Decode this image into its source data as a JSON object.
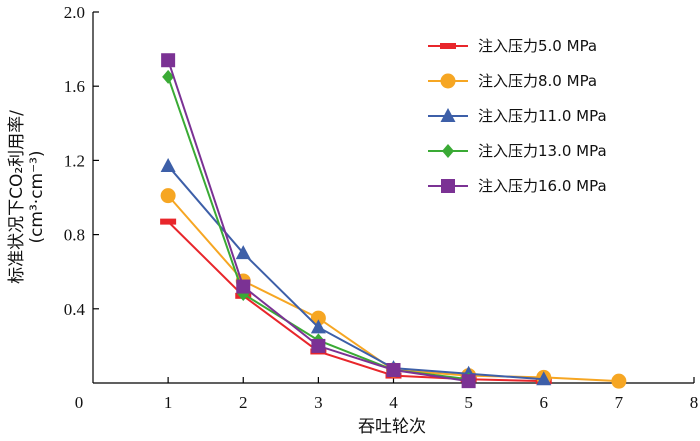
{
  "chart_data": {
    "type": "line",
    "xlabel": "吞吐轮次",
    "ylabel_line1": "标准状况下CO₂利用率/",
    "ylabel_line2": "(cm³·cm⁻³)",
    "xlim": [
      0,
      8
    ],
    "ylim": [
      0,
      2.0
    ],
    "xticks": [
      "0",
      "1",
      "2",
      "3",
      "4",
      "5",
      "6",
      "7",
      "8"
    ],
    "yticks": [
      "0.4",
      "0.8",
      "1.2",
      "1.6",
      "2.0"
    ],
    "grid": false,
    "legend_position": "top-right",
    "series": [
      {
        "name": "注入压力5.0 MPa",
        "color": "#e8262b",
        "marker": "dash",
        "x": [
          1,
          2,
          3,
          4,
          5,
          6
        ],
        "y": [
          0.87,
          0.47,
          0.17,
          0.04,
          0.02,
          0.01
        ]
      },
      {
        "name": "注入压力8.0 MPa",
        "color": "#f6a623",
        "marker": "circle",
        "x": [
          1,
          2,
          3,
          4,
          5,
          6,
          7
        ],
        "y": [
          1.01,
          0.55,
          0.35,
          0.07,
          0.04,
          0.03,
          0.01
        ]
      },
      {
        "name": "注入压力11.0 MPa",
        "color": "#3d5fa8",
        "marker": "triangle",
        "x": [
          1,
          2,
          3,
          4,
          5,
          6
        ],
        "y": [
          1.17,
          0.7,
          0.3,
          0.08,
          0.05,
          0.02
        ]
      },
      {
        "name": "注入压力13.0 MPa",
        "color": "#3aaa35",
        "marker": "diamond",
        "x": [
          1,
          2,
          3,
          4,
          5
        ],
        "y": [
          1.65,
          0.48,
          0.23,
          0.07,
          0.02
        ]
      },
      {
        "name": "注入压力16.0 MPa",
        "color": "#7b3294",
        "marker": "square",
        "x": [
          1,
          2,
          3,
          4,
          5
        ],
        "y": [
          1.74,
          0.52,
          0.2,
          0.07,
          0.01
        ]
      }
    ]
  }
}
